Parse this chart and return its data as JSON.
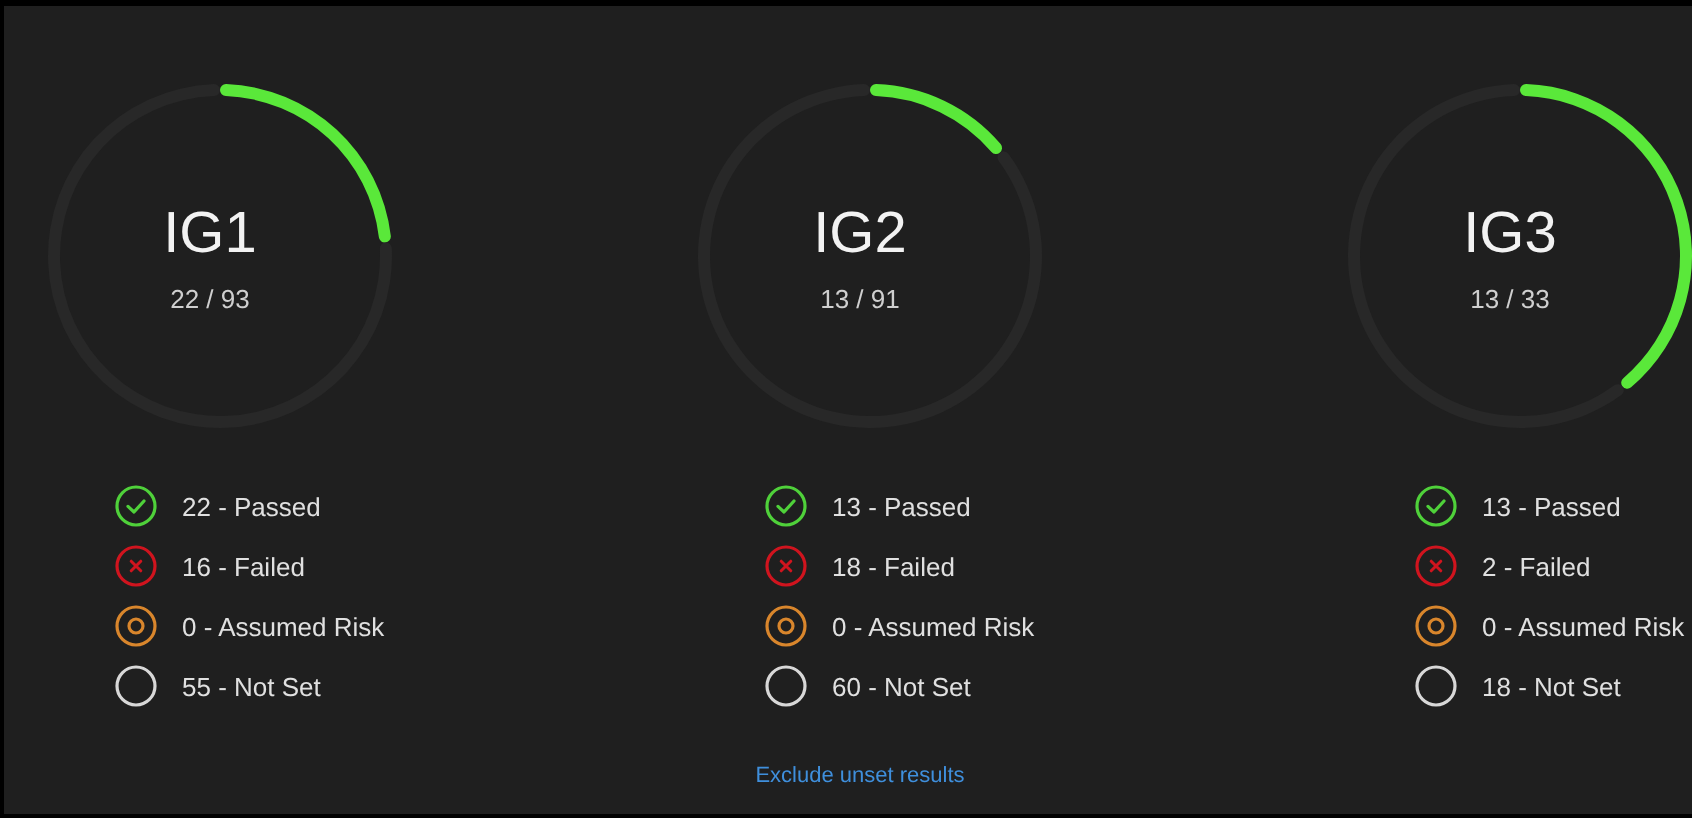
{
  "chart_data": [
    {
      "type": "donut",
      "title": "IG1",
      "subtitle": "22 / 93",
      "categories": [
        null,
        null
      ],
      "values": [
        23.7,
        76.3
      ],
      "colors": [
        "#5ae83a",
        "#282828"
      ],
      "annotations": [
        "22 - Passed",
        "16 - Failed",
        "0 - Assumed Risk",
        "55 - Not Set"
      ]
    },
    {
      "type": "donut",
      "title": "IG2",
      "subtitle": "13 / 91",
      "categories": [
        null,
        null
      ],
      "values": [
        14.3,
        85.7
      ],
      "colors": [
        "#5ae83a",
        "#282828"
      ],
      "annotations": [
        "13 - Passed",
        "18 - Failed",
        "0 - Assumed Risk",
        "60 - Not Set",
        "Exclude unset results"
      ]
    },
    {
      "type": "donut",
      "title": "IG3",
      "subtitle": "13 / 33",
      "categories": [
        null,
        null
      ],
      "values": [
        39.4,
        60.6
      ],
      "colors": [
        "#5ae83a",
        "#282828"
      ],
      "annotations": [
        "13 - Passed",
        "2 - Failed",
        "0 - Assumed Risk",
        "18 - Not Set"
      ]
    }
  ]
}
